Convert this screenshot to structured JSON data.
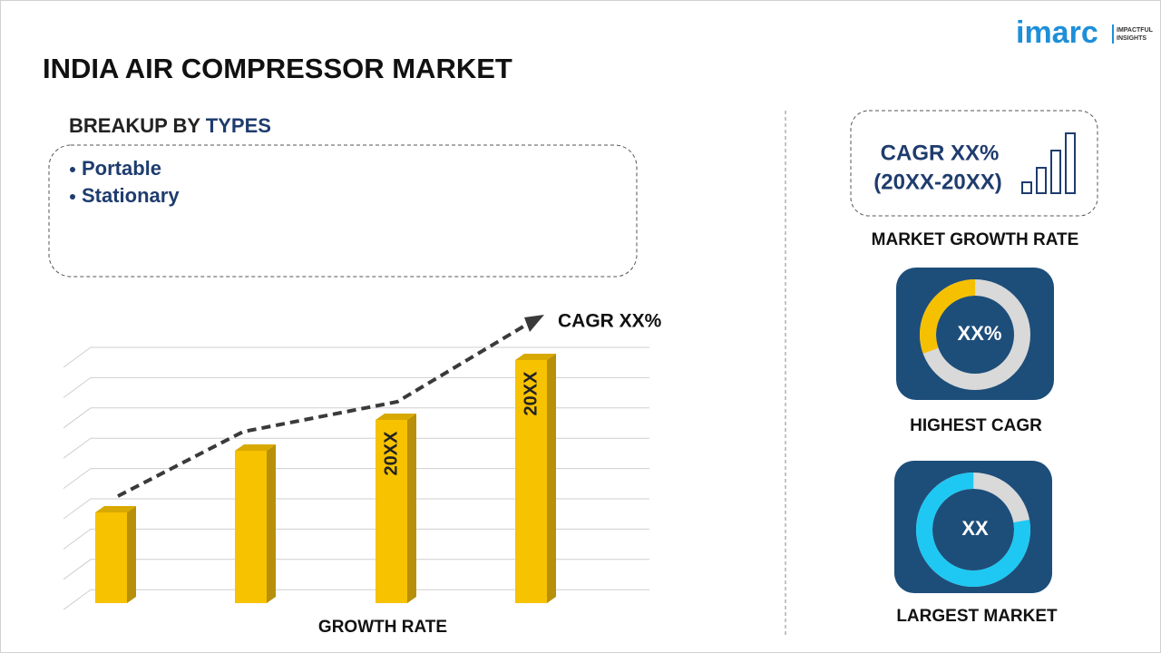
{
  "header": {
    "title": "INDIA AIR COMPRESSOR MARKET",
    "logo": {
      "brand": "imarc",
      "tagline": [
        "IMPACTFUL",
        "INSIGHTS"
      ]
    }
  },
  "breakup": {
    "label": "BREAKUP BY",
    "highlight": "TYPES",
    "items": [
      "Portable",
      "Stationary"
    ]
  },
  "growth_chart": {
    "trend_label": "CAGR XX%",
    "bar_labels": [
      "20XX",
      "20XX"
    ],
    "caption": "GROWTH RATE"
  },
  "cards": [
    {
      "value": "CAGR XX%",
      "period": "(20XX-20XX)",
      "caption": "MARKET GROWTH RATE"
    },
    {
      "value": "XX%",
      "caption": "HIGHEST CAGR"
    },
    {
      "value": "XX",
      "caption": "LARGEST MARKET"
    }
  ]
}
